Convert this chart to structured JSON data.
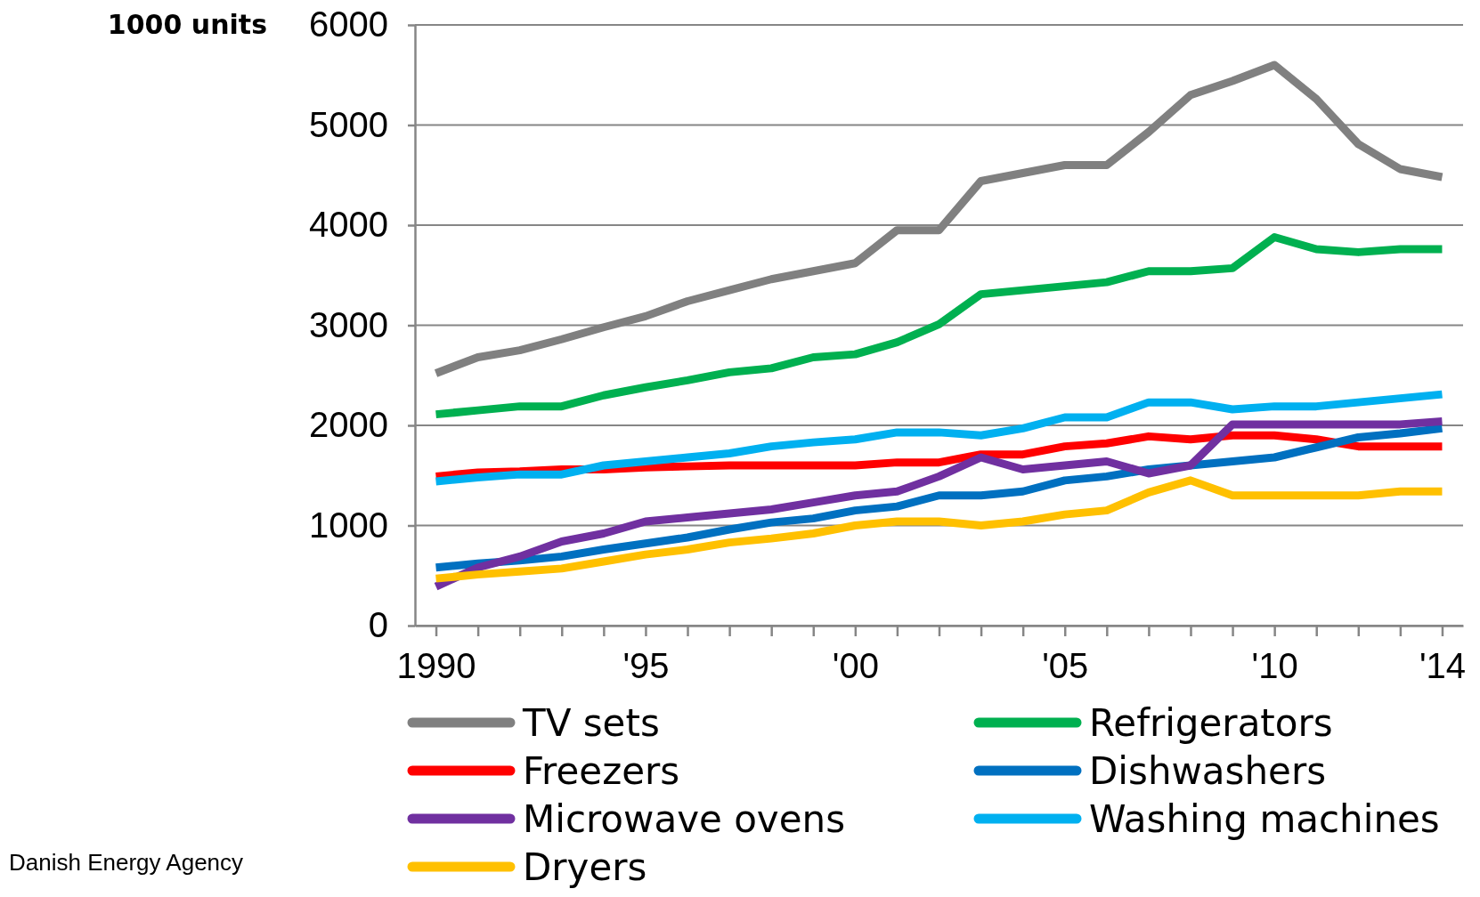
{
  "chart_data": {
    "type": "line",
    "ylabel": "1000 units",
    "x": [
      1990,
      1991,
      1992,
      1993,
      1994,
      1995,
      1996,
      1997,
      1998,
      1999,
      2000,
      2001,
      2002,
      2003,
      2004,
      2005,
      2006,
      2007,
      2008,
      2009,
      2010,
      2011,
      2012,
      2013,
      2014
    ],
    "xlim": [
      1989.5,
      2014.5
    ],
    "xticks": [
      {
        "value": 1990,
        "label": "1990"
      },
      {
        "value": 1991,
        "label": null
      },
      {
        "value": 1992,
        "label": null
      },
      {
        "value": 1993,
        "label": null
      },
      {
        "value": 1994,
        "label": null
      },
      {
        "value": 1995,
        "label": "'95"
      },
      {
        "value": 1996,
        "label": null
      },
      {
        "value": 1997,
        "label": null
      },
      {
        "value": 1998,
        "label": null
      },
      {
        "value": 1999,
        "label": null
      },
      {
        "value": 2000,
        "label": "'00"
      },
      {
        "value": 2001,
        "label": null
      },
      {
        "value": 2002,
        "label": null
      },
      {
        "value": 2003,
        "label": null
      },
      {
        "value": 2004,
        "label": null
      },
      {
        "value": 2005,
        "label": "'05"
      },
      {
        "value": 2006,
        "label": null
      },
      {
        "value": 2007,
        "label": null
      },
      {
        "value": 2008,
        "label": null
      },
      {
        "value": 2009,
        "label": null
      },
      {
        "value": 2010,
        "label": "'10"
      },
      {
        "value": 2011,
        "label": null
      },
      {
        "value": 2012,
        "label": null
      },
      {
        "value": 2013,
        "label": null
      },
      {
        "value": 2014,
        "label": "'14"
      }
    ],
    "ylim": [
      0,
      6000
    ],
    "yticks": [
      0,
      1000,
      2000,
      3000,
      4000,
      5000,
      6000
    ],
    "grid": "y",
    "legend": "bottom",
    "marker": "none",
    "line_style": "solid",
    "annotations": [
      "Danish Energy Agency"
    ],
    "series": [
      {
        "name": "TV sets",
        "color": "#808080",
        "values": [
          2520,
          2680,
          2750,
          2860,
          2980,
          3090,
          3240,
          3350,
          3460,
          3540,
          3620,
          3950,
          3950,
          4440,
          4520,
          4600,
          4600,
          4930,
          5300,
          5440,
          5600,
          5260,
          4810,
          4560,
          4480
        ]
      },
      {
        "name": "Refrigerators",
        "color": "#00b050",
        "values": [
          2110,
          2150,
          2190,
          2190,
          2300,
          2380,
          2450,
          2530,
          2570,
          2680,
          2710,
          2830,
          3010,
          3310,
          3350,
          3390,
          3430,
          3540,
          3540,
          3570,
          3880,
          3760,
          3730,
          3760,
          3760
        ]
      },
      {
        "name": "Freezers",
        "color": "#ff0000",
        "values": [
          1490,
          1530,
          1540,
          1560,
          1560,
          1580,
          1590,
          1600,
          1600,
          1600,
          1600,
          1630,
          1630,
          1710,
          1710,
          1790,
          1820,
          1890,
          1860,
          1900,
          1900,
          1860,
          1790,
          1790,
          1790
        ]
      },
      {
        "name": "Dishwashers",
        "color": "#0070c0",
        "values": [
          580,
          620,
          650,
          690,
          760,
          820,
          880,
          960,
          1030,
          1070,
          1150,
          1190,
          1300,
          1300,
          1340,
          1450,
          1490,
          1560,
          1600,
          1640,
          1680,
          1780,
          1880,
          1920,
          1970
        ]
      },
      {
        "name": "Microwave ovens",
        "color": "#7030a0",
        "values": [
          390,
          580,
          690,
          840,
          920,
          1040,
          1080,
          1120,
          1160,
          1230,
          1300,
          1340,
          1490,
          1680,
          1560,
          1600,
          1640,
          1520,
          1600,
          2010,
          2010,
          2010,
          2010,
          2010,
          2040
        ]
      },
      {
        "name": "Washing machines",
        "color": "#00b0f0",
        "values": [
          1440,
          1480,
          1510,
          1510,
          1600,
          1640,
          1680,
          1720,
          1790,
          1830,
          1860,
          1930,
          1930,
          1900,
          1970,
          2080,
          2080,
          2230,
          2230,
          2160,
          2190,
          2190,
          2230,
          2270,
          2310
        ]
      },
      {
        "name": "Dryers",
        "color": "#ffc000",
        "values": [
          470,
          510,
          540,
          570,
          640,
          710,
          760,
          830,
          870,
          920,
          1000,
          1040,
          1040,
          1000,
          1040,
          1110,
          1150,
          1330,
          1450,
          1300,
          1300,
          1300,
          1300,
          1340,
          1340
        ]
      }
    ]
  }
}
